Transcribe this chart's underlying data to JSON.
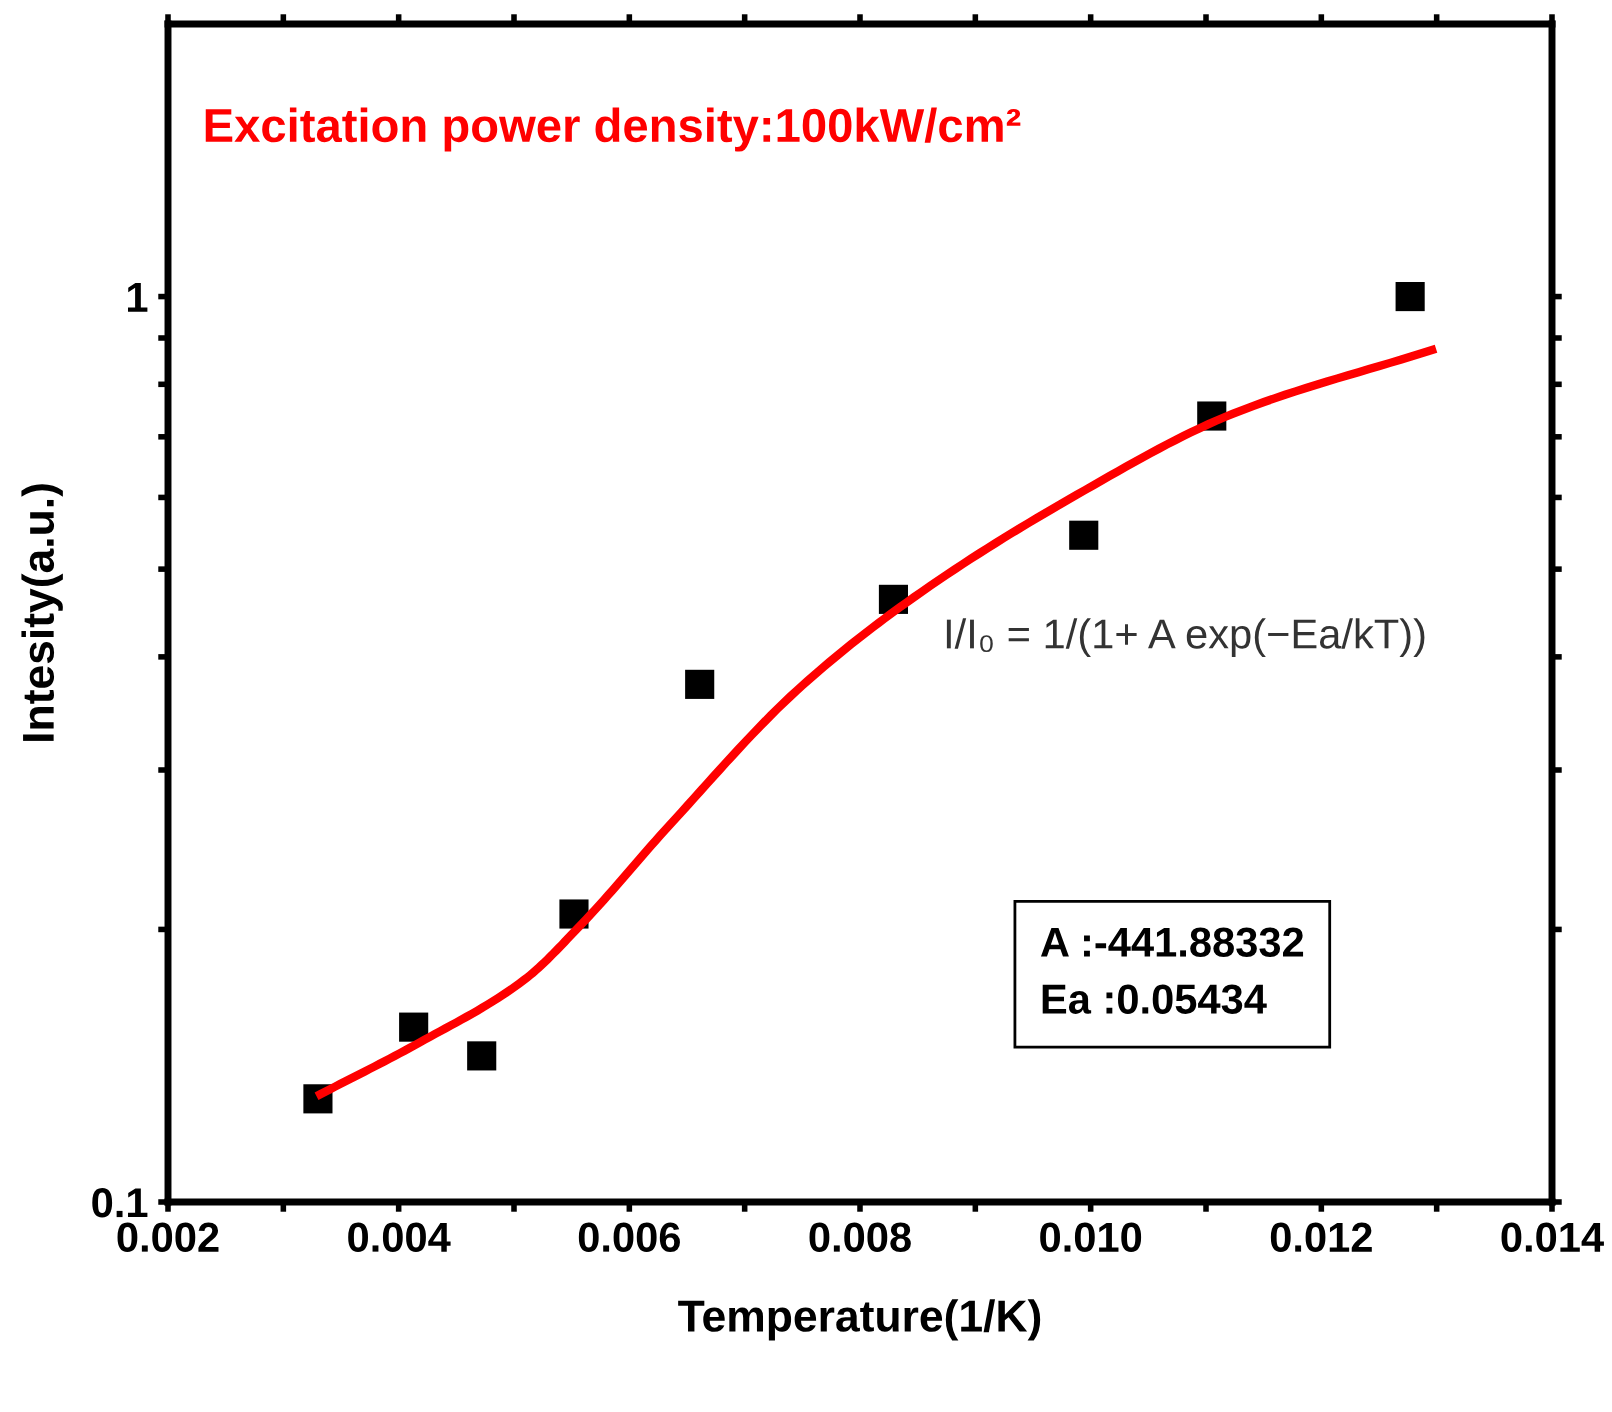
{
  "chart_data": {
    "type": "scatter",
    "xlabel": "Temperature(1/K)",
    "ylabel": "Intesity(a.u.)",
    "annotations": [
      "Excitation power density:100kW/cm²",
      "I/I₀ = 1/(1+ A exp(−Ea/kT))",
      "A :-441.88332\nEa :0.05434"
    ],
    "series": [
      {
        "color": "#000000",
        "marker": "square",
        "x": [
          0.0033,
          0.00413,
          0.00472,
          0.00552,
          0.00661,
          0.00829,
          0.00994,
          0.01105,
          0.01277
        ],
        "values": [
          0.13,
          0.156,
          0.145,
          0.208,
          0.373,
          0.463,
          0.545,
          0.738,
          1.0
        ]
      },
      {
        "type": "line",
        "color": "#ff0000",
        "marker": "none",
        "line_style": "solid",
        "x": [
          0.00332,
          0.00418,
          0.00509,
          0.00559,
          0.00634,
          0.00745,
          0.0084,
          0.00981,
          0.01123,
          0.01296
        ],
        "values": [
          0.1315,
          0.15,
          0.176,
          0.203,
          0.26,
          0.367,
          0.459,
          0.597,
          0.742,
          0.873
        ]
      }
    ],
    "xlim": [
      0.002,
      0.014
    ],
    "xticks": [
      {
        "value": 0.002,
        "label": "0.002"
      },
      {
        "value": 0.003,
        "label": null
      },
      {
        "value": 0.004,
        "label": "0.004"
      },
      {
        "value": 0.005,
        "label": null
      },
      {
        "value": 0.006,
        "label": "0.006"
      },
      {
        "value": 0.007,
        "label": null
      },
      {
        "value": 0.008,
        "label": "0.008"
      },
      {
        "value": 0.009,
        "label": null
      },
      {
        "value": 0.01,
        "label": "0.010"
      },
      {
        "value": 0.011,
        "label": null
      },
      {
        "value": 0.012,
        "label": "0.012"
      },
      {
        "value": 0.013,
        "label": null
      },
      {
        "value": 0.014,
        "label": "0.014"
      }
    ],
    "ylim": [
      0.1,
      2
    ],
    "yticks": [
      0.1,
      {
        "value": 0.2,
        "label": null
      },
      {
        "value": 0.3,
        "label": null
      },
      {
        "value": 0.4,
        "label": null
      },
      {
        "value": 0.5,
        "label": null
      },
      {
        "value": 0.6,
        "label": null
      },
      {
        "value": 0.7,
        "label": null
      },
      {
        "value": 0.8,
        "label": null
      },
      {
        "value": 0.9,
        "label": null
      },
      1
    ],
    "log": "y",
    "grid": false,
    "legend": false
  }
}
